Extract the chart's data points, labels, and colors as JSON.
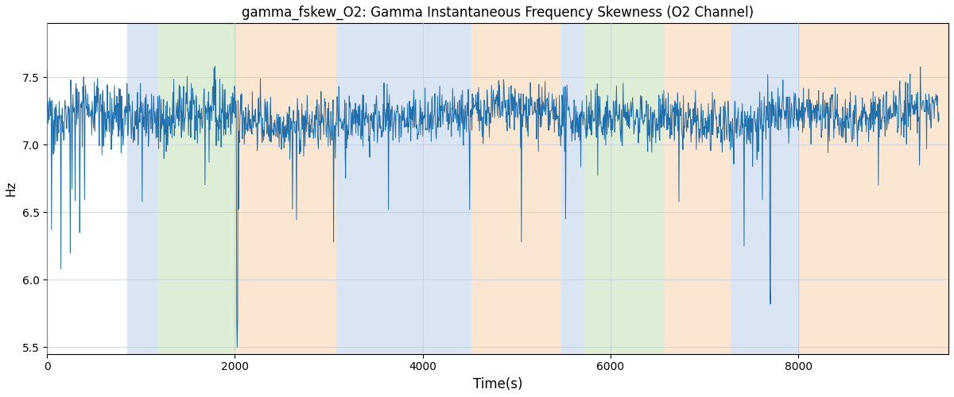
{
  "title": "gamma_fskew_O2: Gamma Instantaneous Frequency Skewness (O2 Channel)",
  "xlabel": "Time(s)",
  "ylabel": "Hz",
  "ylim": [
    5.45,
    7.9
  ],
  "xlim": [
    0,
    9600
  ],
  "line_color": "#1f6fad",
  "line_width": 0.7,
  "background_color": "#ffffff",
  "grid_color": "#c0c8d8",
  "n_points": 2000,
  "seed": 42,
  "mean": 7.2,
  "std": 0.1,
  "spike_prob": 0.012,
  "spike_mag_min": 0.25,
  "spike_mag_max": 0.65,
  "bands": [
    {
      "xmin": 850,
      "xmax": 1180,
      "color": "#aec6e8",
      "alpha": 0.45
    },
    {
      "xmin": 1180,
      "xmax": 2020,
      "color": "#b5d9a5",
      "alpha": 0.45
    },
    {
      "xmin": 2020,
      "xmax": 3080,
      "color": "#f5c99a",
      "alpha": 0.45
    },
    {
      "xmin": 3080,
      "xmax": 4520,
      "color": "#aec6e8",
      "alpha": 0.45
    },
    {
      "xmin": 4520,
      "xmax": 5480,
      "color": "#f5c99a",
      "alpha": 0.45
    },
    {
      "xmin": 5480,
      "xmax": 5720,
      "color": "#aec6e8",
      "alpha": 0.45
    },
    {
      "xmin": 5720,
      "xmax": 6580,
      "color": "#b5d9a5",
      "alpha": 0.45
    },
    {
      "xmin": 6580,
      "xmax": 7280,
      "color": "#f5c99a",
      "alpha": 0.45
    },
    {
      "xmin": 7280,
      "xmax": 8020,
      "color": "#aec6e8",
      "alpha": 0.45
    },
    {
      "xmin": 8020,
      "xmax": 9600,
      "color": "#f5c99a",
      "alpha": 0.45
    }
  ],
  "yticks": [
    5.5,
    6.0,
    6.5,
    7.0,
    7.5
  ],
  "xticks": [
    0,
    2000,
    4000,
    6000,
    8000
  ],
  "figsize": [
    12.0,
    5.0
  ],
  "dpi": 100
}
